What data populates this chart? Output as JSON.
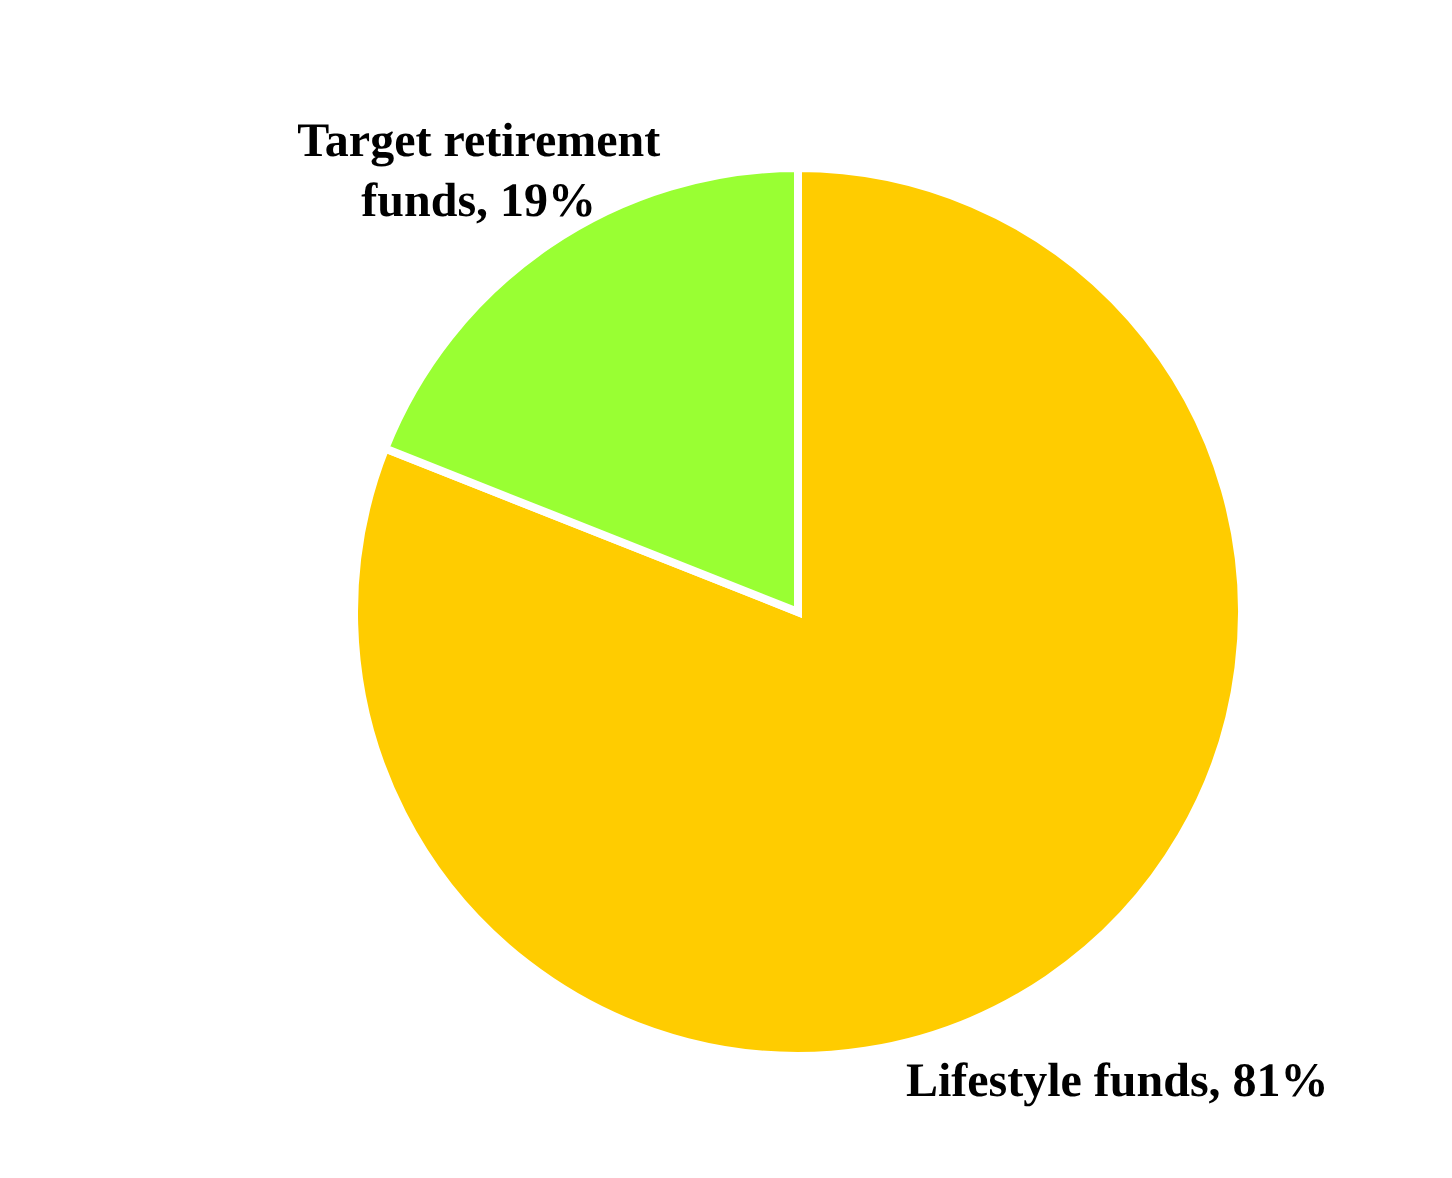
{
  "chart_data": {
    "type": "pie",
    "categories": [
      "Lifestyle funds",
      "Target retirement funds"
    ],
    "values": [
      81,
      19
    ],
    "colors": [
      "#ffcc00",
      "#99ff33"
    ],
    "value_labels": [
      "81%",
      "19%"
    ]
  }
}
